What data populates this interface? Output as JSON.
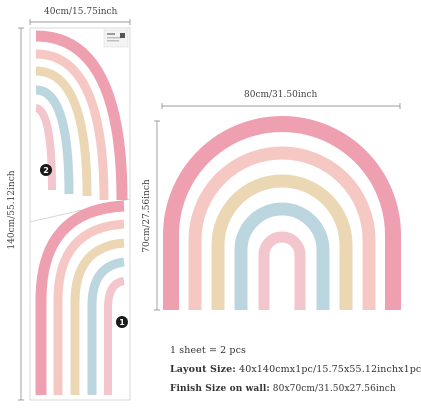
{
  "sheet": {
    "width_label": "40cm/15.75inch",
    "height_label": "140cm/55.12inch",
    "badge_top": "2",
    "badge_bottom": "1"
  },
  "assembled": {
    "width_label": "80cm/31.50inch",
    "height_label": "70cm/27.56inch"
  },
  "info": {
    "sheets": "1 sheet = 2 pcs",
    "layout_label": "Layout Size:",
    "layout_value": "40x140cmx1pc/15.75x55.12inchx1pc",
    "finish_label": "Finish Size on wall:",
    "finish_value": "80x70cm/31.50x27.56inch"
  },
  "colors": {
    "pink_outer": "#ee9fb0",
    "pink_light": "#f6c8c4",
    "sand": "#ecd7b4",
    "blue": "#bcd6e0",
    "soft_pink": "#f3c5cc"
  }
}
